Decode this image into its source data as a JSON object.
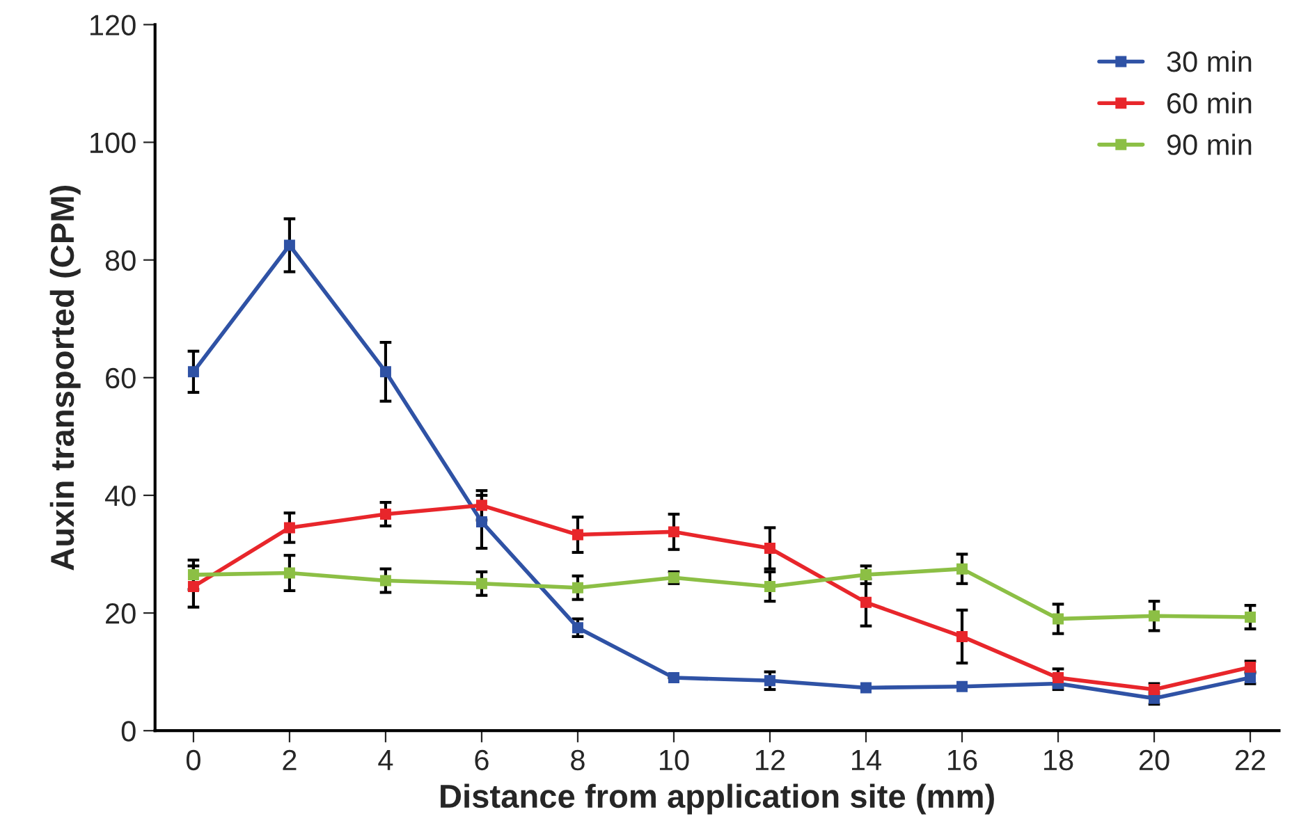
{
  "chart_data": {
    "type": "line",
    "xlabel": "Distance from application site (mm)",
    "ylabel": "Auxin transported (CPM)",
    "x": [
      0,
      2,
      4,
      6,
      8,
      10,
      12,
      14,
      16,
      18,
      20,
      22
    ],
    "series": [
      {
        "name": "30 min",
        "color": "#2f52a5",
        "values": [
          61,
          82.5,
          61,
          35.5,
          17.5,
          9,
          8.5,
          7.3,
          7.5,
          8,
          5.5,
          9
        ],
        "errors": [
          3.5,
          4.5,
          5,
          4.5,
          1.5,
          null,
          1.5,
          null,
          null,
          1,
          1,
          1
        ]
      },
      {
        "name": "60 min",
        "color": "#e8262b",
        "values": [
          24.5,
          34.5,
          36.8,
          38.3,
          33.3,
          33.8,
          31,
          21.8,
          16,
          9,
          7,
          10.8
        ],
        "errors": [
          3.5,
          2.5,
          2,
          2.5,
          3,
          3,
          3.5,
          4,
          4.5,
          1.5,
          1,
          1
        ]
      },
      {
        "name": "90 min",
        "color": "#8cbf45",
        "values": [
          26.5,
          26.8,
          25.5,
          25,
          24.3,
          26,
          24.5,
          26.5,
          27.5,
          19,
          19.5,
          19.3
        ],
        "errors": [
          2.5,
          3,
          2,
          2,
          2,
          1,
          2.5,
          1.5,
          2.5,
          2.5,
          2.5,
          2
        ]
      }
    ],
    "xlim": [
      -0.8,
      22.6
    ],
    "xticks": [
      0,
      2,
      4,
      6,
      8,
      10,
      12,
      14,
      16,
      18,
      20,
      22
    ],
    "ylim": [
      0,
      120
    ],
    "yticks": [
      0,
      20,
      40,
      60,
      80,
      100,
      120
    ],
    "marker": "square",
    "line_style": "solid",
    "legend": "top right",
    "grid": false
  }
}
